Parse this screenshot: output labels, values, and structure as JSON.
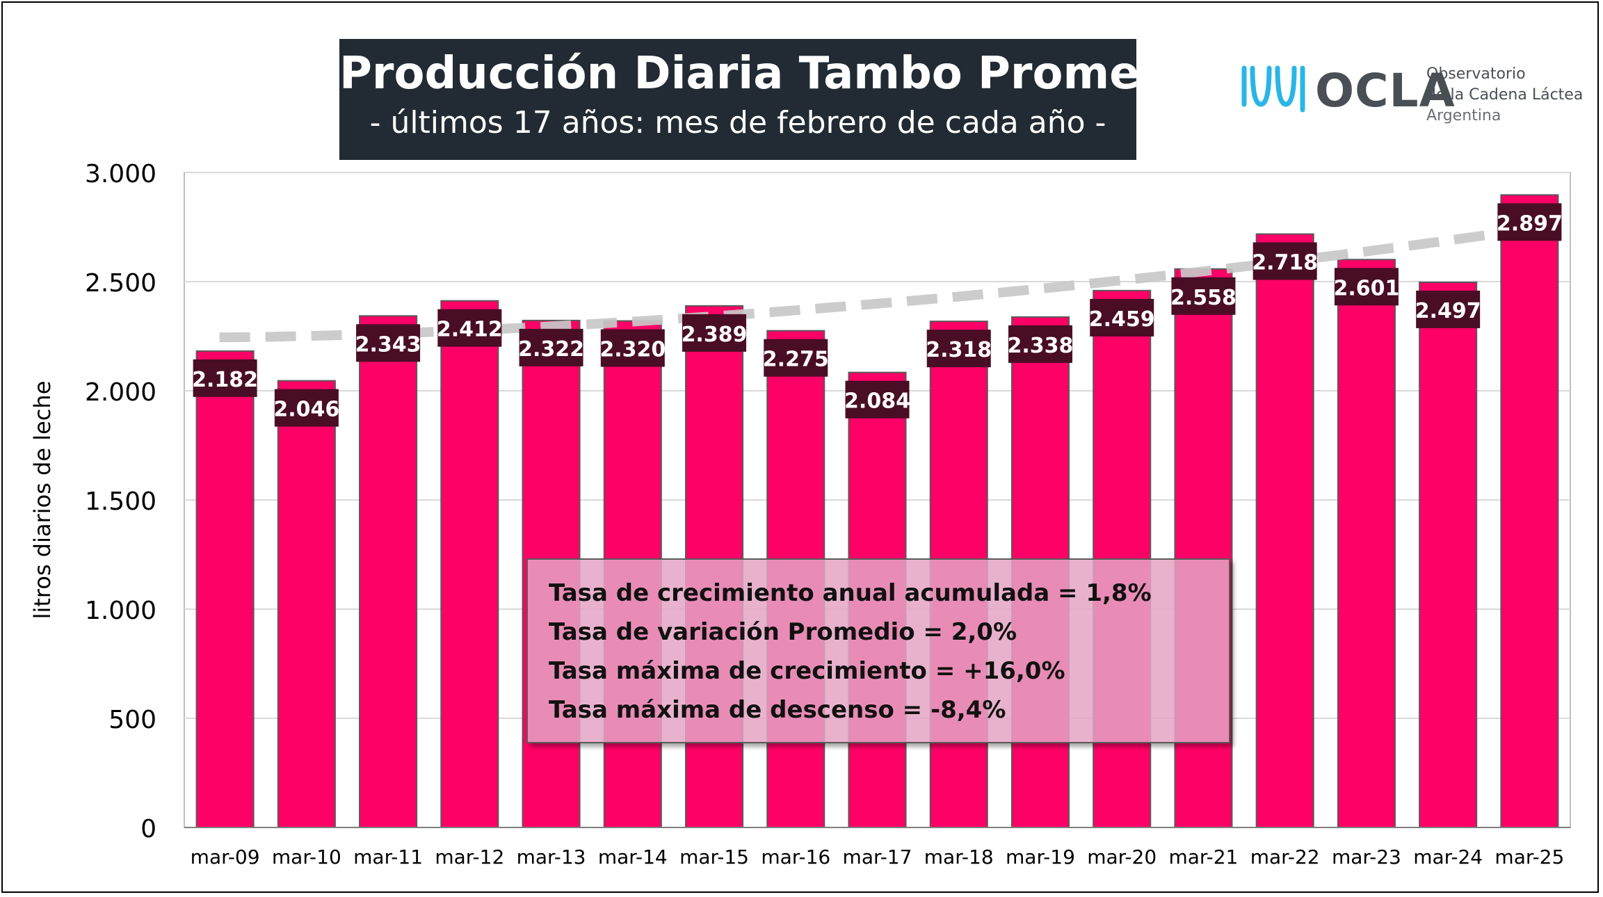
{
  "header": {
    "title": "Producción Diaria Tambo Promedio",
    "subtitle": "- últimos 17 años: mes de febrero de cada año -"
  },
  "logo": {
    "name": "OCLA",
    "line1": "Observatorio",
    "line2": "de la Cadena Láctea",
    "line3": "Argentina",
    "icon": "milk-wave-icon",
    "colors": {
      "icon": "#29b6e6",
      "text": "#4a4f55"
    }
  },
  "stats": [
    "Tasa de crecimiento anual acumulada = 1,8%",
    "Tasa de variación Promedio = 2,0%",
    "Tasa máxima de crecimiento = +16,0%",
    "Tasa máxima de descenso = -8,4%"
  ],
  "chart_data": {
    "type": "bar",
    "title": "Producción Diaria Tambo Promedio",
    "subtitle": "- últimos 17 años: mes de febrero de cada año -",
    "ylabel": "litros diarios de leche",
    "xlabel": "",
    "categories": [
      "mar-09",
      "mar-10",
      "mar-11",
      "mar-12",
      "mar-13",
      "mar-14",
      "mar-15",
      "mar-16",
      "mar-17",
      "mar-18",
      "mar-19",
      "mar-20",
      "mar-21",
      "mar-22",
      "mar-23",
      "mar-24",
      "mar-25"
    ],
    "values": [
      2182,
      2046,
      2343,
      2412,
      2322,
      2320,
      2389,
      2275,
      2084,
      2318,
      2338,
      2459,
      2558,
      2718,
      2601,
      2497,
      2897
    ],
    "value_labels": [
      "2.182",
      "2.046",
      "2.343",
      "2.412",
      "2.322",
      "2.320",
      "2.389",
      "2.275",
      "2.084",
      "2.318",
      "2.338",
      "2.459",
      "2.558",
      "2.718",
      "2.601",
      "2.497",
      "2.897"
    ],
    "ylim": [
      0,
      3000
    ],
    "yticks": [
      0,
      500,
      1000,
      1500,
      2000,
      2500,
      3000
    ],
    "ytick_labels": [
      "0",
      "500",
      "1.000",
      "1.500",
      "2.000",
      "2.500",
      "3.000"
    ],
    "grid": true,
    "trendline": {
      "type": "exponential",
      "style": "dashed",
      "start": 2245,
      "end": 2745
    },
    "colors": {
      "bar": "#ff0066",
      "bar_edge": "#5a5a5a",
      "label_bg": "#4a0d26",
      "label_text": "#ffffff",
      "trend": "#c8c8c8",
      "grid": "#d9d9d9"
    }
  }
}
